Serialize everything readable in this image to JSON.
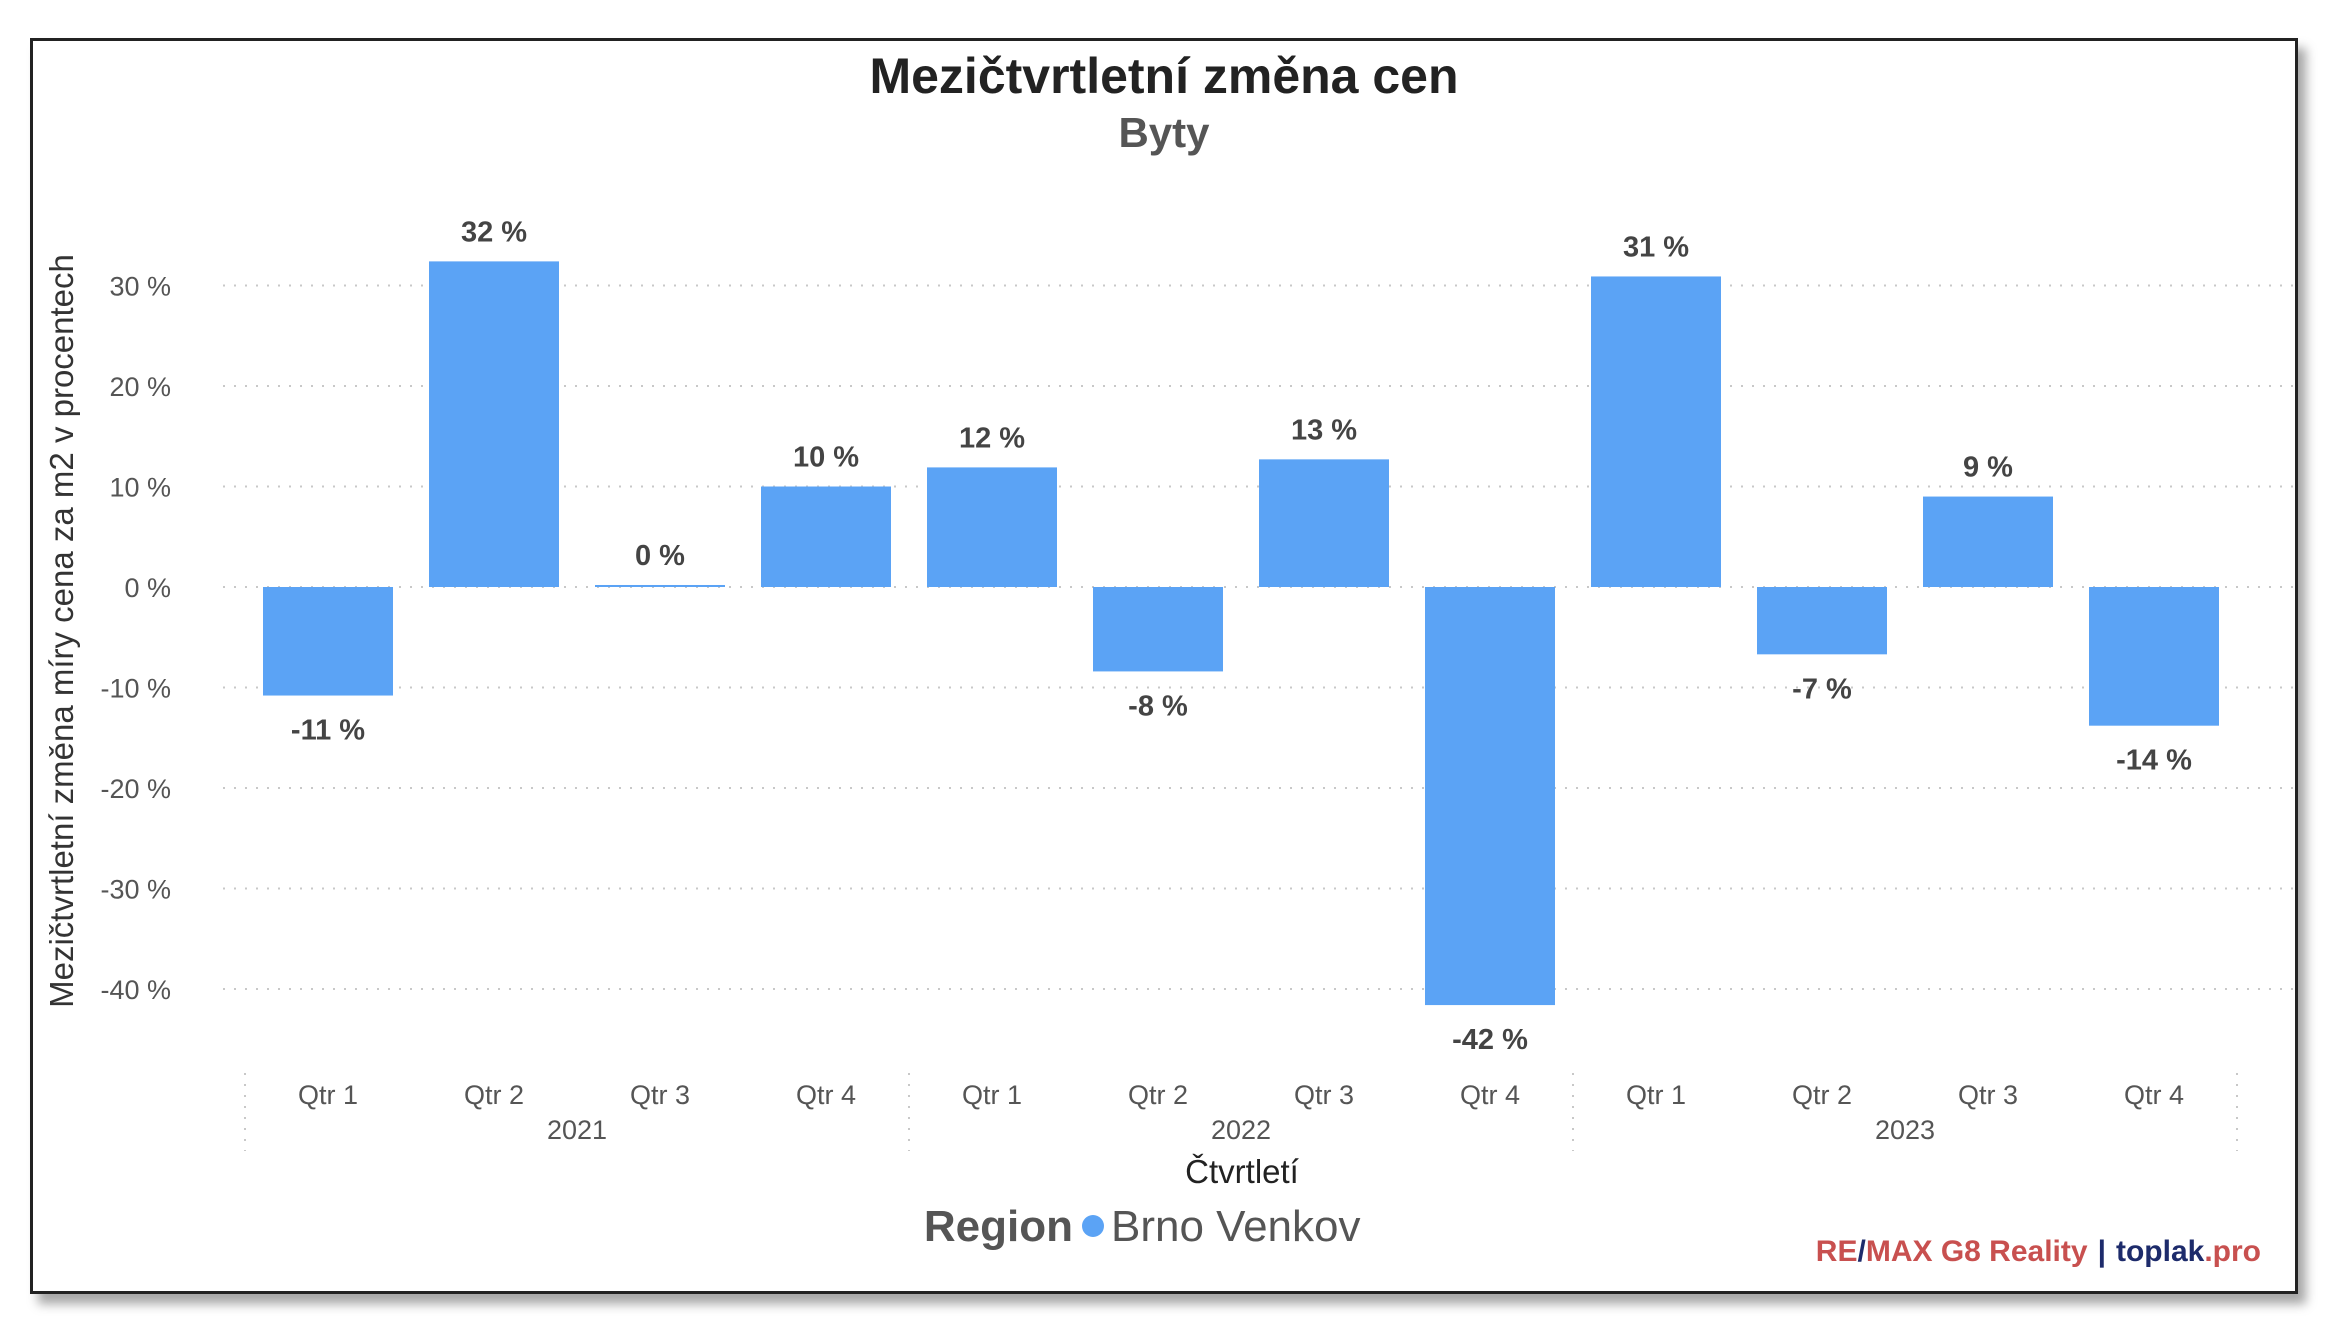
{
  "chart_data": {
    "type": "bar",
    "title": "Mezičtvrtletní změna cen",
    "subtitle": "Byty",
    "xlabel": "Čtvrtletí",
    "ylabel": "Mezičtvrtletní změna míry cena za m2 v procentech",
    "ylim": [
      -46,
      37
    ],
    "yticks": [
      30,
      20,
      10,
      0,
      -10,
      -20,
      -30,
      -40
    ],
    "ytick_labels": [
      "30 %",
      "20 %",
      "10 %",
      "0 %",
      "-10 %",
      "-20 %",
      "-30 %",
      "-40 %"
    ],
    "grid": true,
    "categories": [
      "Qtr 1",
      "Qtr 2",
      "Qtr 3",
      "Qtr 4",
      "Qtr 1",
      "Qtr 2",
      "Qtr 3",
      "Qtr 4",
      "Qtr 1",
      "Qtr 2",
      "Qtr 3",
      "Qtr 4"
    ],
    "groups": [
      {
        "label": "2021",
        "span": 4
      },
      {
        "label": "2022",
        "span": 4
      },
      {
        "label": "2023",
        "span": 4
      }
    ],
    "series": [
      {
        "name": "Brno Venkov",
        "color": "#5ba3f5",
        "values": [
          -10.8,
          32.4,
          0.2,
          10.0,
          11.9,
          -8.4,
          12.7,
          -41.6,
          30.9,
          -6.7,
          9.0,
          -13.8
        ],
        "data_labels": [
          "-11 %",
          "32 %",
          "0 %",
          "10 %",
          "12 %",
          "-8 %",
          "13 %",
          "-42 %",
          "31 %",
          "-7 %",
          "9 %",
          "-14 %"
        ]
      }
    ],
    "legend": {
      "title": "Region",
      "placement": "bottom-center"
    }
  },
  "credit": {
    "part1": "RE",
    "slash": "/",
    "part2": "MAX G8 Reality",
    "separator": "|",
    "site": "toplak",
    "tld": ".pro"
  }
}
